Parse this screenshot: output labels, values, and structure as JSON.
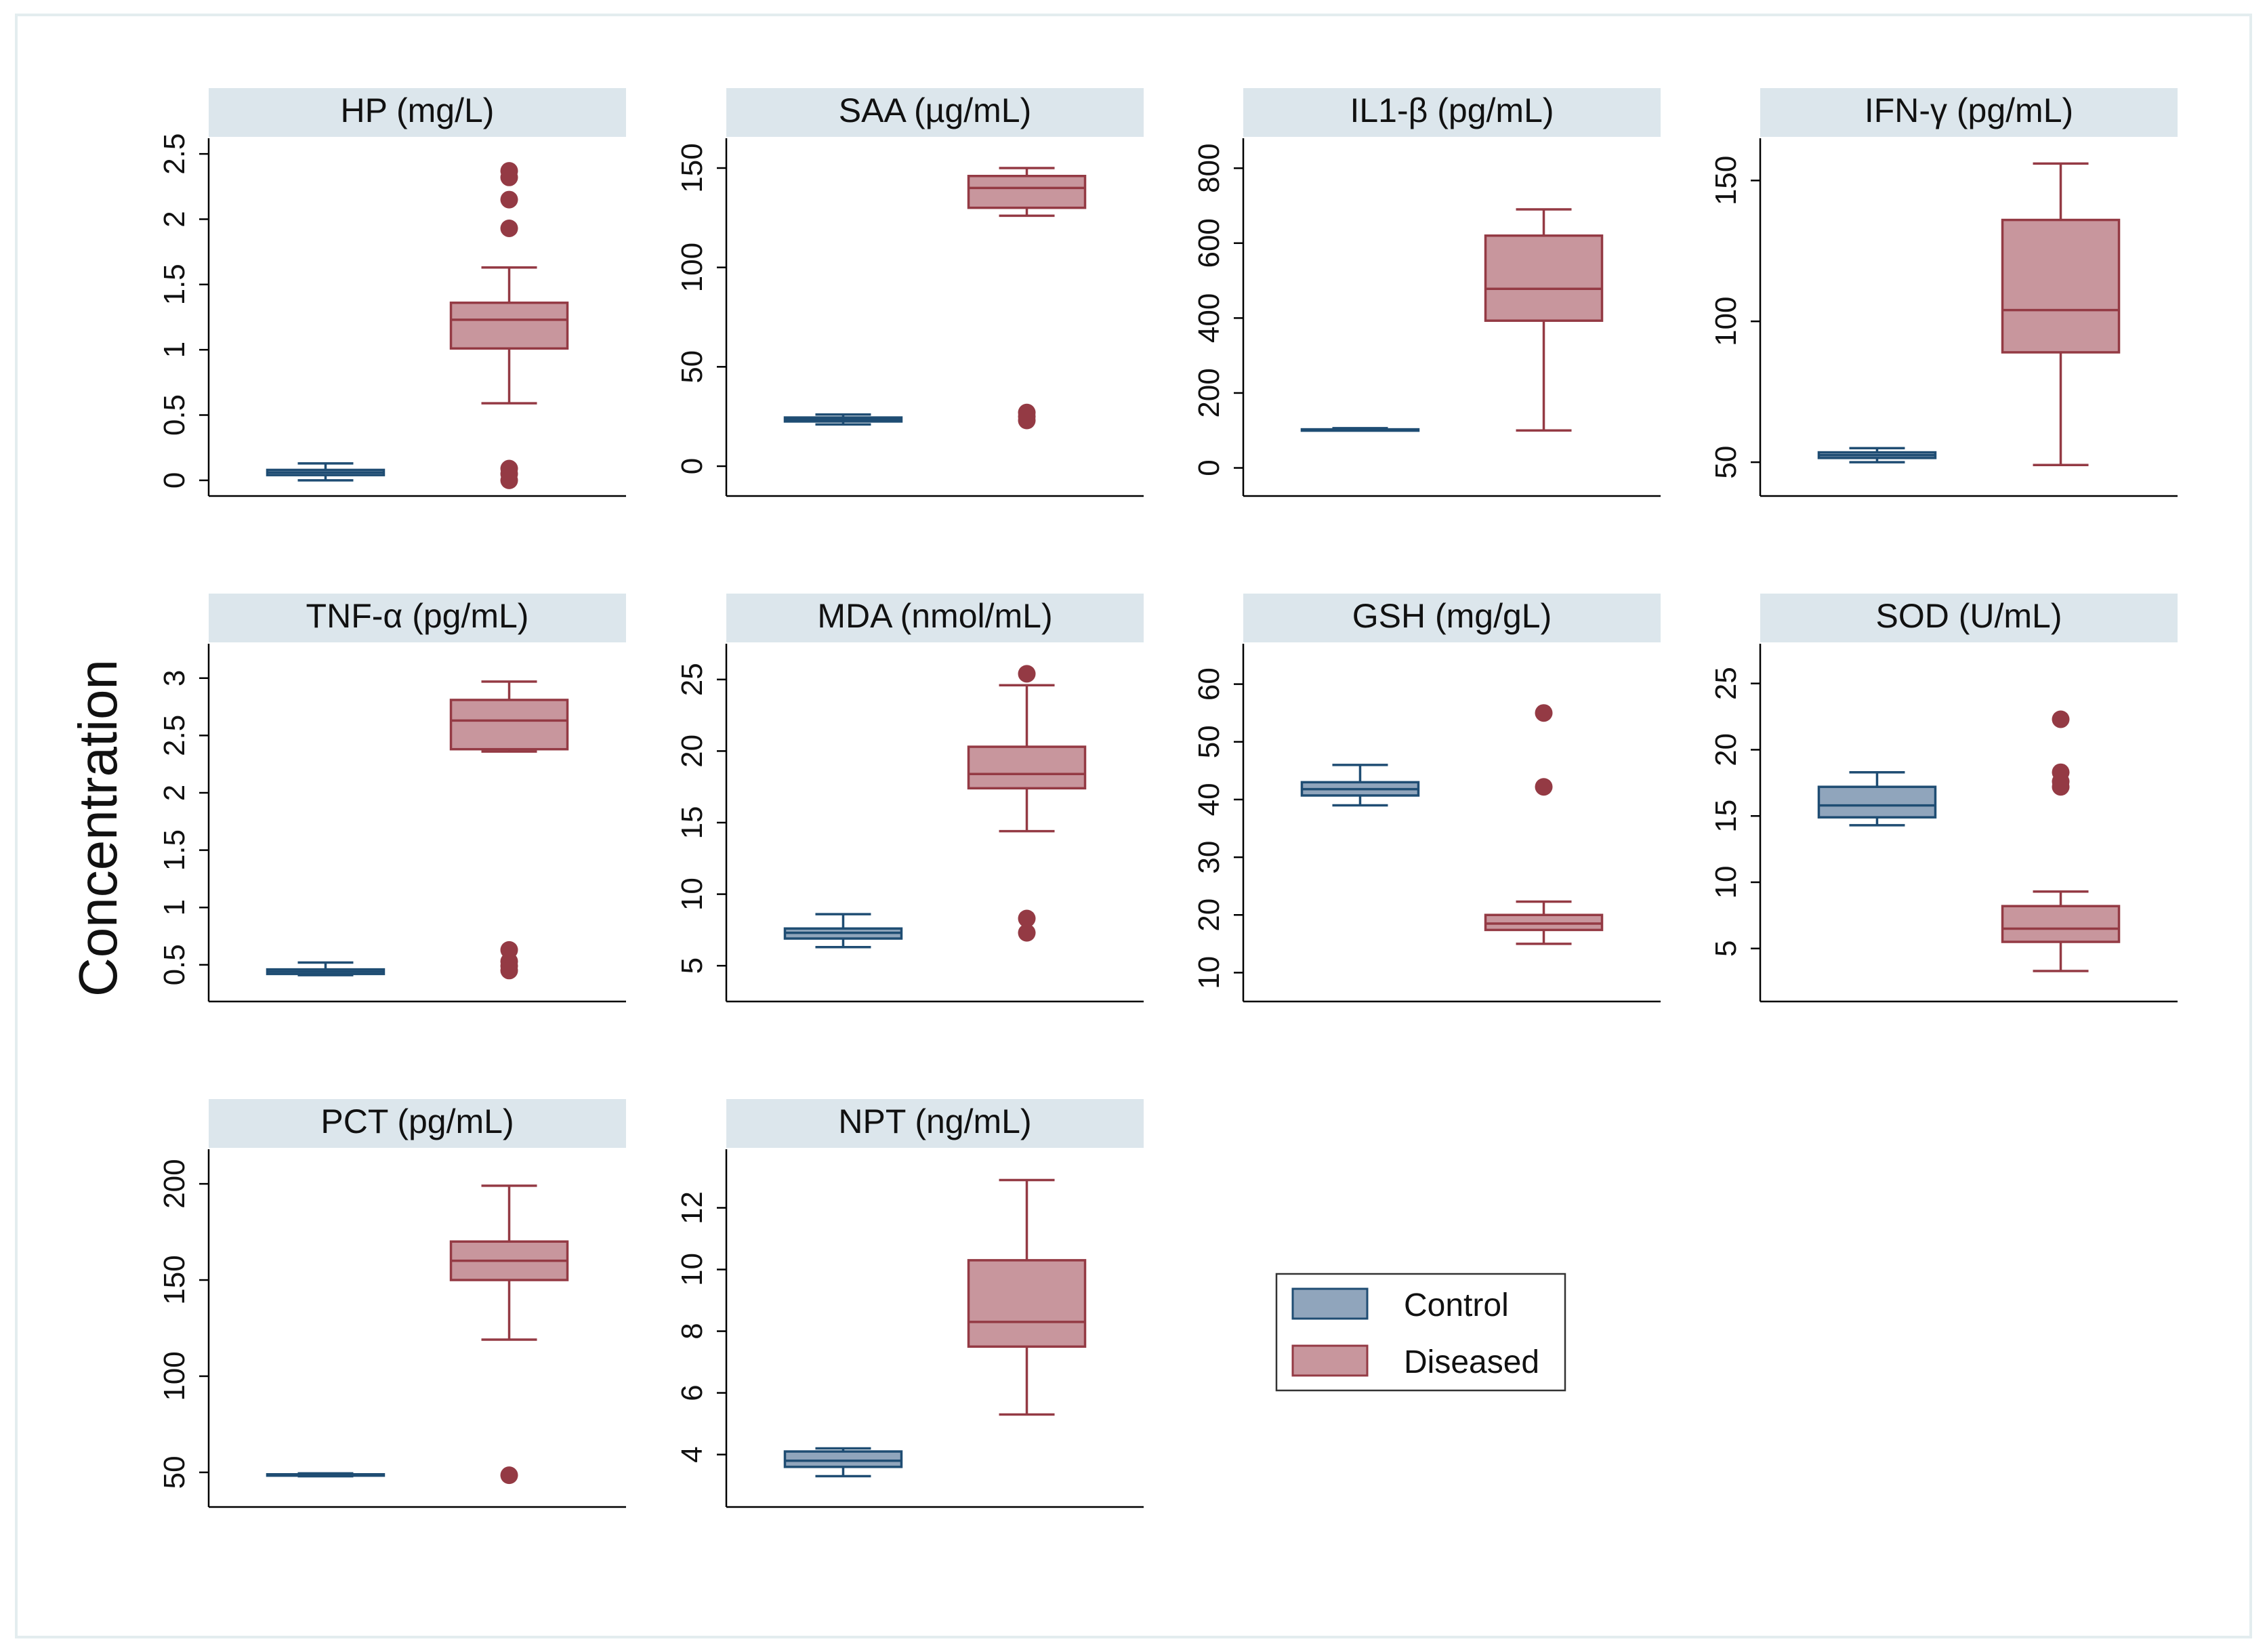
{
  "colors": {
    "control_fill": "#90A5BC",
    "control_line": "#1F4D73",
    "diseased_fill": "#C8969D",
    "diseased_line": "#943A44",
    "header_bg": "#DCE6EC",
    "frame": "#E3EDEF"
  },
  "chart_data": {
    "type": "box",
    "ylabel": "Concentration",
    "groups": [
      "Control",
      "Diseased"
    ],
    "legend": [
      {
        "label": "Control",
        "group": "control"
      },
      {
        "label": "Diseased",
        "group": "diseased"
      }
    ],
    "panels": [
      {
        "title": "HP (mg/L)",
        "ylim": [
          -0.12,
          2.62
        ],
        "ticks": [
          0,
          0.5,
          1,
          1.5,
          2,
          2.5
        ],
        "tick_labels": [
          "0",
          "0.5",
          "1",
          "1.5",
          "2",
          "2.5"
        ],
        "series": [
          {
            "group": "control",
            "whisker_low": 0.0,
            "q1": 0.04,
            "median": 0.06,
            "q3": 0.08,
            "whisker_high": 0.13,
            "outliers": []
          },
          {
            "group": "diseased",
            "whisker_low": 0.59,
            "q1": 1.01,
            "median": 1.23,
            "q3": 1.36,
            "whisker_high": 1.63,
            "outliers": [
              2.37,
              2.32,
              2.15,
              1.93,
              0.09,
              0.05,
              0.0
            ]
          }
        ]
      },
      {
        "title": "SAA (µg/mL)",
        "ylim": [
          -15,
          165
        ],
        "ticks": [
          0,
          50,
          100,
          150
        ],
        "tick_labels": [
          "0",
          "50",
          "100",
          "150"
        ],
        "series": [
          {
            "group": "control",
            "whisker_low": 21,
            "q1": 22.5,
            "median": 23.5,
            "q3": 24.5,
            "whisker_high": 26,
            "outliers": []
          },
          {
            "group": "diseased",
            "whisker_low": 126,
            "q1": 130,
            "median": 140,
            "q3": 146,
            "whisker_high": 150,
            "outliers": [
              27,
              25,
              23
            ]
          }
        ]
      },
      {
        "title": "IL1-β (pg/mL)",
        "ylim": [
          -75,
          880
        ],
        "ticks": [
          0,
          200,
          400,
          600,
          800
        ],
        "tick_labels": [
          "0",
          "200",
          "400",
          "600",
          "800"
        ],
        "series": [
          {
            "group": "control",
            "whisker_low": 100,
            "q1": 101,
            "median": 102,
            "q3": 103,
            "whisker_high": 106,
            "outliers": []
          },
          {
            "group": "diseased",
            "whisker_low": 100,
            "q1": 393,
            "median": 478,
            "q3": 620,
            "whisker_high": 690,
            "outliers": []
          }
        ]
      },
      {
        "title": "IFN-γ (pg/mL)",
        "ylim": [
          38,
          165
        ],
        "ticks": [
          50,
          100,
          150
        ],
        "tick_labels": [
          "50",
          "100",
          "150"
        ],
        "series": [
          {
            "group": "control",
            "whisker_low": 50,
            "q1": 51.5,
            "median": 52.5,
            "q3": 53.5,
            "whisker_high": 55,
            "outliers": []
          },
          {
            "group": "diseased",
            "whisker_low": 49,
            "q1": 89,
            "median": 104,
            "q3": 136,
            "whisker_high": 156,
            "outliers": []
          }
        ]
      },
      {
        "title": "TNF-α (pg/mL)",
        "ylim": [
          0.18,
          3.3
        ],
        "ticks": [
          0.5,
          1,
          1.5,
          2,
          2.5,
          3
        ],
        "tick_labels": [
          "0.5",
          "1",
          "1.5",
          "2",
          "2.5",
          "3"
        ],
        "series": [
          {
            "group": "control",
            "whisker_low": 0.41,
            "q1": 0.42,
            "median": 0.44,
            "q3": 0.46,
            "whisker_high": 0.52,
            "outliers": []
          },
          {
            "group": "diseased",
            "whisker_low": 2.36,
            "q1": 2.38,
            "median": 2.63,
            "q3": 2.81,
            "whisker_high": 2.97,
            "outliers": [
              0.63,
              0.53,
              0.49,
              0.45
            ]
          }
        ]
      },
      {
        "title": "MDA (nmol/mL)",
        "ylim": [
          2.5,
          27.5
        ],
        "ticks": [
          5,
          10,
          15,
          20,
          25
        ],
        "tick_labels": [
          "5",
          "10",
          "15",
          "20",
          "25"
        ],
        "series": [
          {
            "group": "control",
            "whisker_low": 6.3,
            "q1": 6.9,
            "median": 7.3,
            "q3": 7.6,
            "whisker_high": 8.6,
            "outliers": []
          },
          {
            "group": "diseased",
            "whisker_low": 14.4,
            "q1": 17.4,
            "median": 18.4,
            "q3": 20.3,
            "whisker_high": 24.6,
            "outliers": [
              25.4,
              8.3,
              7.3
            ]
          }
        ]
      },
      {
        "title": "GSH (mg/gL)",
        "ylim": [
          5,
          67
        ],
        "ticks": [
          10,
          20,
          30,
          40,
          50,
          60
        ],
        "tick_labels": [
          "10",
          "20",
          "30",
          "40",
          "50",
          "60"
        ],
        "series": [
          {
            "group": "control",
            "whisker_low": 39,
            "q1": 40.7,
            "median": 41.8,
            "q3": 43,
            "whisker_high": 46,
            "outliers": []
          },
          {
            "group": "diseased",
            "whisker_low": 15,
            "q1": 17.4,
            "median": 18.5,
            "q3": 20,
            "whisker_high": 22.3,
            "outliers": [
              55,
              42.2
            ]
          }
        ]
      },
      {
        "title": "SOD (U/mL)",
        "ylim": [
          1,
          28
        ],
        "ticks": [
          5,
          10,
          15,
          20,
          25
        ],
        "tick_labels": [
          "5",
          "10",
          "15",
          "20",
          "25"
        ],
        "series": [
          {
            "group": "control",
            "whisker_low": 14.3,
            "q1": 14.9,
            "median": 15.8,
            "q3": 17.2,
            "whisker_high": 18.3,
            "outliers": []
          },
          {
            "group": "diseased",
            "whisker_low": 3.3,
            "q1": 5.5,
            "median": 6.5,
            "q3": 8.2,
            "whisker_high": 9.3,
            "outliers": [
              22.3,
              18.3,
              17.6,
              17.2
            ]
          }
        ]
      },
      {
        "title": "PCT (pg/mL)",
        "ylim": [
          32,
          218
        ],
        "ticks": [
          50,
          100,
          150,
          200
        ],
        "tick_labels": [
          "50",
          "100",
          "150",
          "200"
        ],
        "series": [
          {
            "group": "control",
            "whisker_low": 48,
            "q1": 48.4,
            "median": 48.7,
            "q3": 49,
            "whisker_high": 49.5,
            "outliers": []
          },
          {
            "group": "diseased",
            "whisker_low": 119,
            "q1": 150,
            "median": 160,
            "q3": 170,
            "whisker_high": 199,
            "outliers": [
              48.5
            ]
          }
        ]
      },
      {
        "title": "NPT (ng/mL)",
        "ylim": [
          2.3,
          13.9
        ],
        "ticks": [
          4,
          6,
          8,
          10,
          12
        ],
        "tick_labels": [
          "4",
          "6",
          "8",
          "10",
          "12"
        ],
        "series": [
          {
            "group": "control",
            "whisker_low": 3.3,
            "q1": 3.6,
            "median": 3.8,
            "q3": 4.1,
            "whisker_high": 4.2,
            "outliers": []
          },
          {
            "group": "diseased",
            "whisker_low": 5.3,
            "q1": 7.5,
            "median": 8.3,
            "q3": 10.3,
            "whisker_high": 12.9,
            "outliers": []
          }
        ]
      }
    ]
  }
}
